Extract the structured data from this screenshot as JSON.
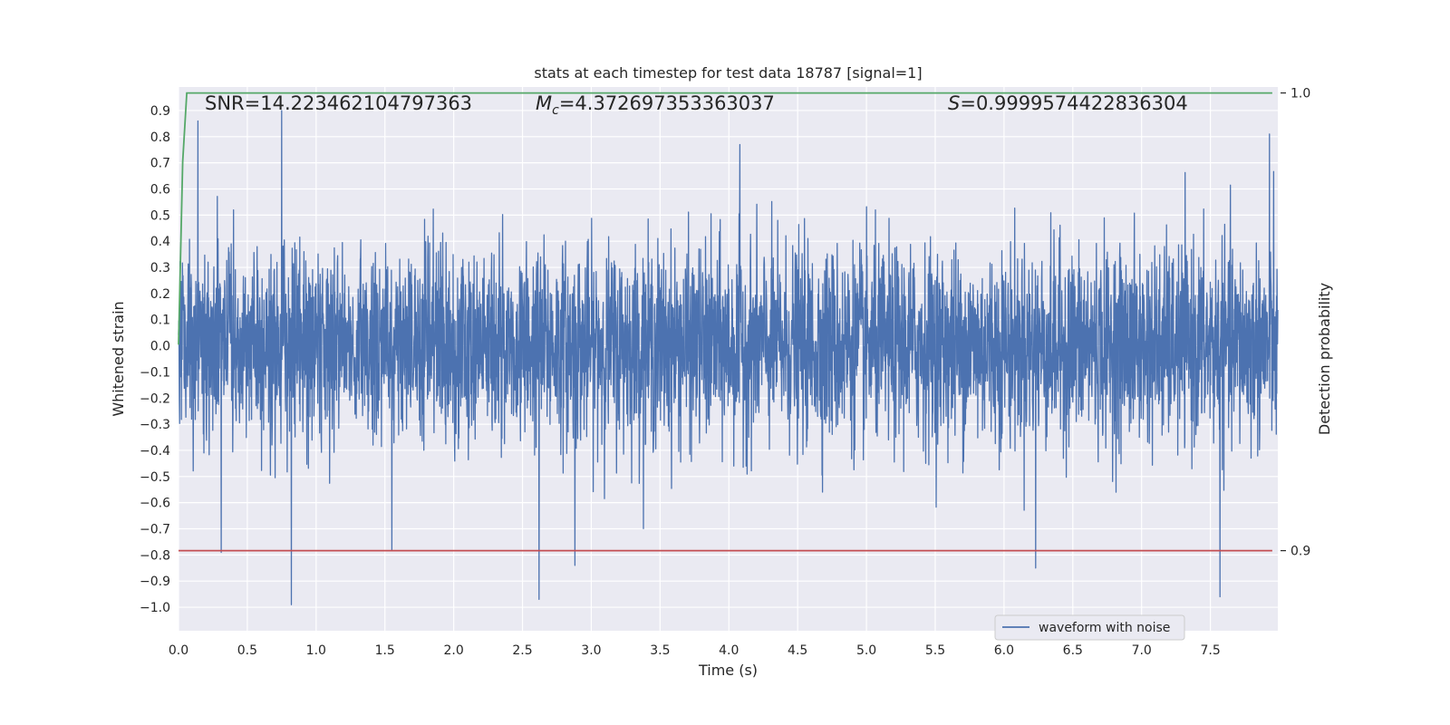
{
  "chart_data": {
    "type": "line",
    "title": "stats at each timestep for test data 18787 [signal=1]",
    "xlabel": "Time (s)",
    "ylabel": "Whitened strain",
    "y2label": "Detection probability",
    "xlim": [
      0.0,
      7.99
    ],
    "ylim": [
      -1.09,
      0.99
    ],
    "y2lim": [
      0.8825,
      1.0013
    ],
    "grid": true,
    "legend_position": "lower-right",
    "x_ticks": [
      "0.0",
      "0.5",
      "1.0",
      "1.5",
      "2.0",
      "2.5",
      "3.0",
      "3.5",
      "4.0",
      "4.5",
      "5.0",
      "5.5",
      "6.0",
      "6.5",
      "7.0",
      "7.5"
    ],
    "y_ticks": [
      "0.9",
      "0.8",
      "0.7",
      "0.6",
      "0.5",
      "0.4",
      "0.3",
      "0.2",
      "0.1",
      "0.0",
      "−0.1",
      "−0.2",
      "−0.3",
      "−0.4",
      "−0.5",
      "−0.6",
      "−0.7",
      "−0.8",
      "−0.9",
      "−1.0"
    ],
    "y2_ticks": [
      "1.0",
      "0.9"
    ],
    "annotations": {
      "snr": "SNR=14.223462104797363",
      "mc_symbol": "M",
      "mc_sub": "c",
      "mc_value": "=4.372697353363037",
      "s_symbol": "S",
      "s_value": "=0.9999574422836304"
    },
    "series": [
      {
        "name": "waveform with noise",
        "axis": "left",
        "color": "#4c72b0",
        "kind": "noisy-waveform",
        "x_range": [
          0.0,
          7.99
        ],
        "typical_amplitude": 0.3,
        "peaks": [
          {
            "x": 0.75,
            "y": 0.9
          },
          {
            "x": 0.14,
            "y": 0.86
          },
          {
            "x": 7.93,
            "y": 0.81
          },
          {
            "x": 4.08,
            "y": 0.77
          },
          {
            "x": 0.82,
            "y": -0.99
          },
          {
            "x": 2.62,
            "y": -0.97
          },
          {
            "x": 7.57,
            "y": -0.96
          },
          {
            "x": 2.88,
            "y": -0.84
          },
          {
            "x": 6.23,
            "y": -0.85
          },
          {
            "x": 0.31,
            "y": -0.79
          },
          {
            "x": 1.55,
            "y": -0.78
          }
        ]
      },
      {
        "name": "",
        "axis": "right",
        "color": "#55a868",
        "points": [
          [
            0.0,
            0.945
          ],
          [
            0.03,
            0.985
          ],
          [
            0.06,
            1.0
          ],
          [
            7.95,
            1.0
          ]
        ]
      },
      {
        "name": "",
        "axis": "right",
        "color": "#c44e52",
        "points": [
          [
            0.0,
            0.9
          ],
          [
            7.95,
            0.9
          ]
        ]
      }
    ]
  }
}
